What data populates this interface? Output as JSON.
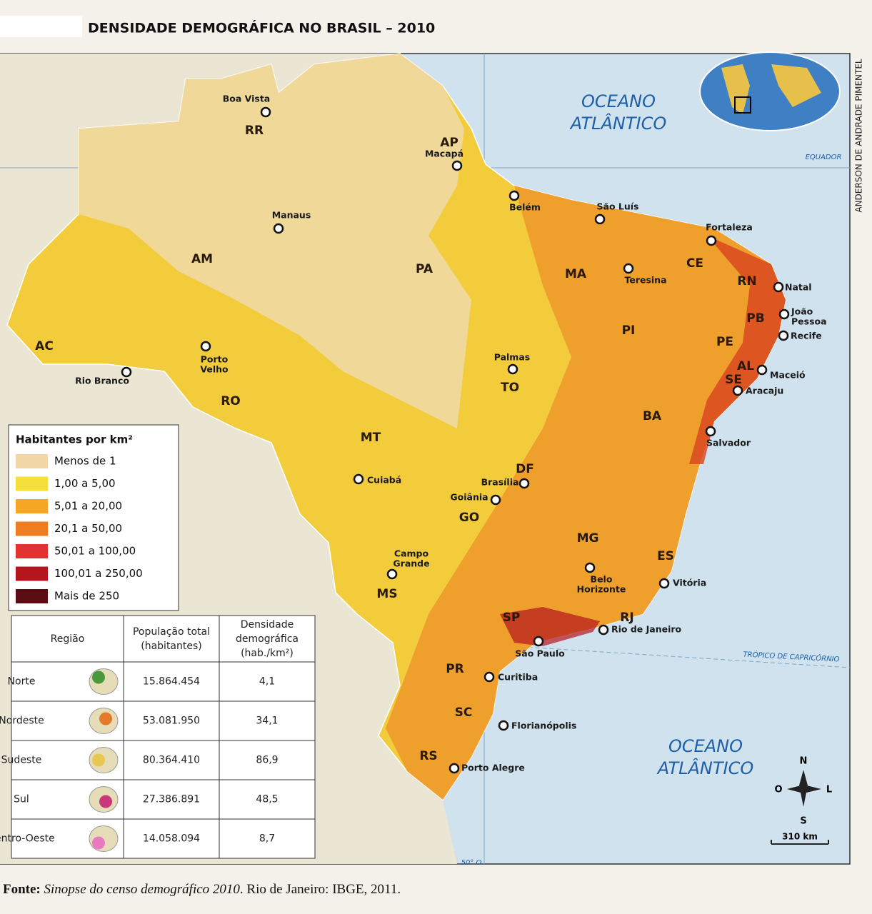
{
  "title": "DENSIDADE DEMOGRÁFICA NO BRASIL – 2010",
  "credit": "ANDERSON DE ANDRADE PIMENTEL",
  "oceans": [
    [
      "OCEANO",
      "ATLÂNTICO"
    ],
    [
      "OCEANO",
      "ATLÂNTICO"
    ]
  ],
  "lines": {
    "equator": "EQUADOR",
    "tropic": "TRÓPICO DE CAPRICÓRNIO",
    "meridian": "50° O"
  },
  "states": [
    "RR",
    "AP",
    "AM",
    "PA",
    "MA",
    "CE",
    "RN",
    "PB",
    "PE",
    "AL",
    "SE",
    "PI",
    "AC",
    "RO",
    "TO",
    "BA",
    "MT",
    "DF",
    "GO",
    "MG",
    "ES",
    "MS",
    "SP",
    "RJ",
    "PR",
    "SC",
    "RS"
  ],
  "cities": [
    [
      "Boa Vista"
    ],
    [
      "Macapá"
    ],
    [
      "Manaus"
    ],
    [
      "Belém"
    ],
    [
      "São Luís"
    ],
    [
      "Fortaleza"
    ],
    [
      "Teresina"
    ],
    [
      "Natal"
    ],
    [
      "João",
      "Pessoa"
    ],
    [
      "Recife"
    ],
    [
      "Maceió"
    ],
    [
      "Aracaju"
    ],
    [
      "Salvador"
    ],
    [
      "Palmas"
    ],
    [
      "Rio Branco"
    ],
    [
      "Porto",
      "Velho"
    ],
    [
      "Cuiabá"
    ],
    [
      "Brasília"
    ],
    [
      "Goiânia"
    ],
    [
      "Campo",
      "Grande"
    ],
    [
      "Belo",
      "Horizonte"
    ],
    [
      "Vitória"
    ],
    [
      "Rio de Janeiro"
    ],
    [
      "São Paulo"
    ],
    [
      "Curitiba"
    ],
    [
      "Florianópolis"
    ],
    [
      "Porto Alegre"
    ]
  ],
  "legend": {
    "title": "Habitantes por km²",
    "items": [
      {
        "label": "Menos de 1",
        "color": "#f2d7a8"
      },
      {
        "label": "1,00 a 5,00",
        "color": "#f5df3a"
      },
      {
        "label": "5,01 a 20,00",
        "color": "#f5a623"
      },
      {
        "label": "20,1 a 50,00",
        "color": "#ee7d22"
      },
      {
        "label": "50,01 a 100,00",
        "color": "#e23232"
      },
      {
        "label": "100,01 a 250,00",
        "color": "#b5161e"
      },
      {
        "label": "Mais de 250",
        "color": "#5a0d12"
      }
    ]
  },
  "table": {
    "headers": [
      [
        "Região"
      ],
      [
        "População total",
        "(habitantes)"
      ],
      [
        "Densidade",
        "demográfica",
        "(hab./km²)"
      ]
    ],
    "rows": [
      [
        "Norte",
        "15.864.454",
        "4,1"
      ],
      [
        "Nordeste",
        "53.081.950",
        "34,1"
      ],
      [
        "Sudeste",
        "80.364.410",
        "86,9"
      ],
      [
        "Sul",
        "27.386.891",
        "48,5"
      ],
      [
        "Centro-Oeste",
        "14.058.094",
        "8,7"
      ]
    ]
  },
  "compass": {
    "north": "N",
    "south": "S",
    "east": "L",
    "west": "O"
  },
  "scale": "310 km",
  "source": {
    "prefix": "Fonte: ",
    "work": "Sinopse do censo demográfico 2010",
    "rest": ". Rio de Janeiro: IBGE, 2011."
  }
}
